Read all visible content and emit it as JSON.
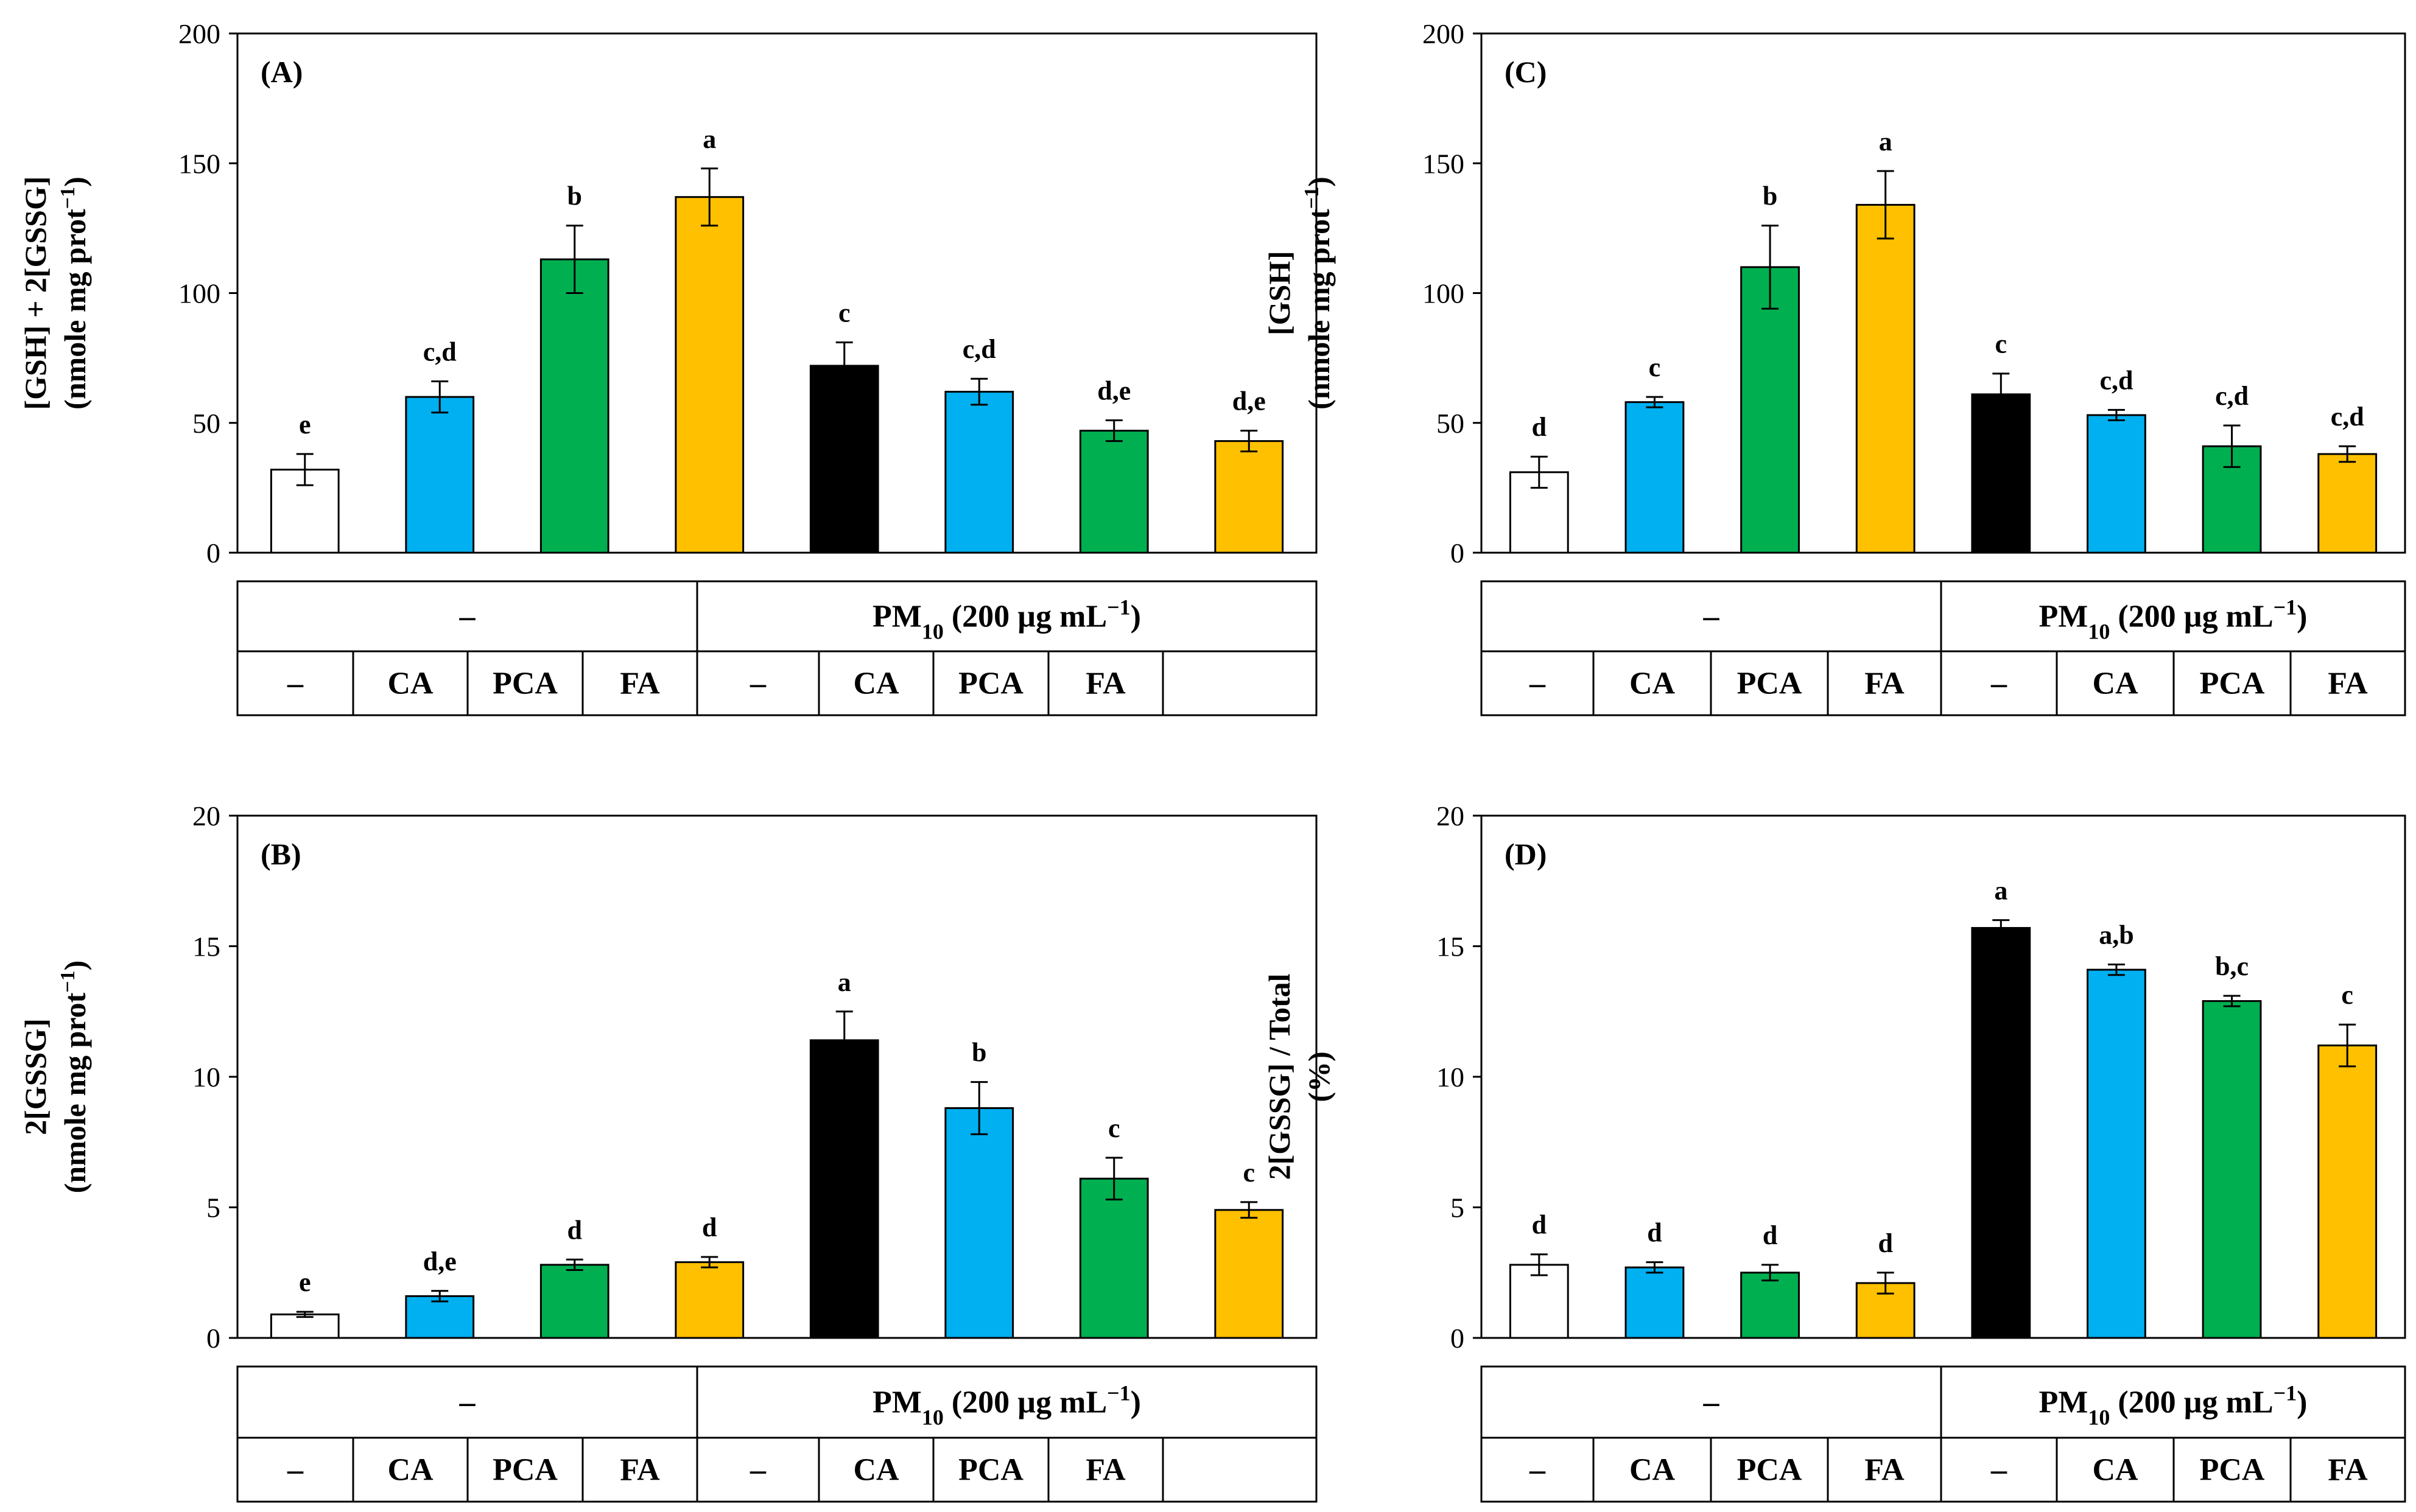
{
  "table_labels": {
    "none": "–",
    "treatment": "PM",
    "treatment_sub": "10",
    "treatment_rest": " (200 µg mL",
    "treatment_exp": "−1",
    "treatment_close": ")",
    "groups": [
      "–",
      "CA",
      "PCA",
      "FA",
      "–",
      "CA",
      "PCA",
      "FA"
    ]
  },
  "bar_colors": [
    "#ffffff",
    "#00b0f0",
    "#00b050",
    "#ffc000",
    "#000000",
    "#00b0f0",
    "#00b050",
    "#ffc000"
  ],
  "chart_data": [
    {
      "type": "bar",
      "panel": "(A)",
      "ylabel_line1": "[GSH] + 2[GSSG]",
      "ylabel_line2_a": "(nmole mg prot",
      "ylabel_line2_exp": "−1",
      "ylabel_line2_b": ")",
      "ylim": [
        0,
        200
      ],
      "yticks": [
        0,
        50,
        100,
        150,
        200
      ],
      "tick_labels": [
        "0",
        "50",
        "100",
        "150",
        "200"
      ],
      "categories": [
        "–",
        "CA",
        "PCA",
        "FA",
        "PM10 –",
        "PM10 CA",
        "PM10 PCA",
        "PM10 FA"
      ],
      "values": [
        32,
        60,
        113,
        137,
        72,
        62,
        47,
        43
      ],
      "errors": [
        6,
        6,
        13,
        11,
        9,
        5,
        4,
        4
      ],
      "letters": [
        "e",
        "c,d",
        "b",
        "a",
        "c",
        "c,d",
        "d,e",
        "d,e"
      ]
    },
    {
      "type": "bar",
      "panel": "(B)",
      "ylabel_line1": "2[GSSG]",
      "ylabel_line2_a": "(nmole mg prot",
      "ylabel_line2_exp": "−1",
      "ylabel_line2_b": ")",
      "ylim": [
        0,
        20
      ],
      "yticks": [
        0,
        5,
        10,
        15,
        20
      ],
      "tick_labels": [
        "0",
        "5",
        "10",
        "15",
        "20"
      ],
      "categories": [
        "–",
        "CA",
        "PCA",
        "FA",
        "PM10 –",
        "PM10 CA",
        "PM10 PCA",
        "PM10 FA"
      ],
      "values": [
        0.9,
        1.6,
        2.8,
        2.9,
        11.4,
        8.8,
        6.1,
        4.9
      ],
      "errors": [
        0.1,
        0.2,
        0.2,
        0.2,
        1.1,
        1.0,
        0.8,
        0.3
      ],
      "letters": [
        "e",
        "d,e",
        "d",
        "d",
        "a",
        "b",
        "c",
        "c"
      ]
    },
    {
      "type": "bar",
      "panel": "(C)",
      "ylabel_line1": "[GSH]",
      "ylabel_line2_a": "(nmole mg prot",
      "ylabel_line2_exp": "−1",
      "ylabel_line2_b": ")",
      "ylim": [
        0,
        200
      ],
      "yticks": [
        0,
        50,
        100,
        150,
        200
      ],
      "tick_labels": [
        "0",
        "50",
        "100",
        "150",
        "200"
      ],
      "categories": [
        "–",
        "CA",
        "PCA",
        "FA",
        "PM10 –",
        "PM10 CA",
        "PM10 PCA",
        "PM10 FA"
      ],
      "values": [
        31,
        58,
        110,
        134,
        61,
        53,
        41,
        38
      ],
      "errors": [
        6,
        2,
        16,
        13,
        8,
        2,
        8,
        3
      ],
      "letters": [
        "d",
        "c",
        "b",
        "a",
        "c",
        "c,d",
        "c,d",
        "c,d"
      ]
    },
    {
      "type": "bar",
      "panel": "(D)",
      "ylabel_line1": "2[GSSG] / Total",
      "ylabel_line2_a": "(%)",
      "ylabel_line2_exp": "",
      "ylabel_line2_b": "",
      "ylim": [
        0,
        20
      ],
      "yticks": [
        0,
        5,
        10,
        15,
        20
      ],
      "tick_labels": [
        "0",
        "5",
        "10",
        "15",
        "20"
      ],
      "categories": [
        "–",
        "CA",
        "PCA",
        "FA",
        "PM10 –",
        "PM10 CA",
        "PM10 PCA",
        "PM10 FA"
      ],
      "values": [
        2.8,
        2.7,
        2.5,
        2.1,
        15.7,
        14.1,
        12.9,
        11.2
      ],
      "errors": [
        0.4,
        0.2,
        0.3,
        0.4,
        0.3,
        0.2,
        0.2,
        0.8
      ],
      "letters": [
        "d",
        "d",
        "d",
        "d",
        "a",
        "a,b",
        "b,c",
        "c"
      ]
    }
  ]
}
